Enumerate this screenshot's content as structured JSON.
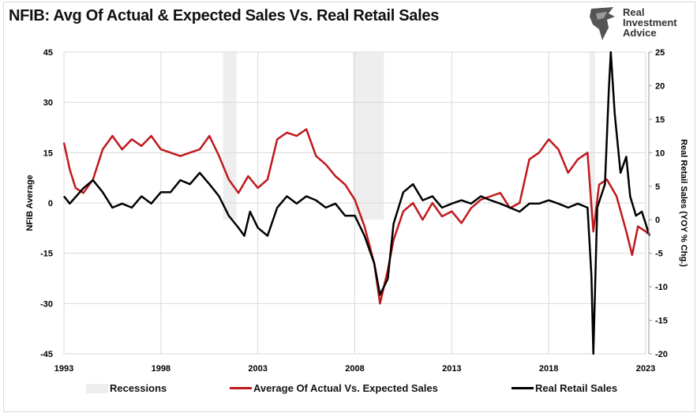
{
  "title": "NFIB: Avg Of Actual & Expected Sales Vs. Real Retail Sales",
  "logo": {
    "line1": "Real",
    "line2": "Investment",
    "line3": "Advice"
  },
  "colors": {
    "red": "#c0181c",
    "black": "#000000",
    "recession": "#eeeeee",
    "grid": "#d9d9d9"
  },
  "chart_data": {
    "type": "line",
    "title": "NFIB: Avg Of Actual & Expected Sales Vs. Real Retail Sales",
    "ylabel": "NFIB Average",
    "y2label": "Real Retail Sales (YOY % Chg.)",
    "xlim": [
      1993,
      2023.3
    ],
    "ylim": [
      -45,
      45
    ],
    "y2lim": [
      -20,
      25
    ],
    "xticks": [
      "1993",
      "1998",
      "2003",
      "2008",
      "2013",
      "2018",
      "2023"
    ],
    "yticks": [
      "45",
      "30",
      "15",
      "0",
      "-15",
      "-30",
      "-45"
    ],
    "y2ticks": [
      "25",
      "20",
      "15",
      "10",
      "5",
      "0",
      "-5",
      "-10",
      "-15",
      "-20"
    ],
    "grid": true,
    "legend_position": "bottom",
    "recessions": {
      "name": "Recessions",
      "periods": [
        [
          2001.2,
          2001.9
        ],
        [
          2007.9,
          2009.5
        ],
        [
          2020.1,
          2020.4
        ]
      ]
    },
    "series": [
      {
        "name": "Average Of Actual Vs. Expected Sales",
        "axis": "left",
        "x": [
          1993,
          1993.3,
          1993.6,
          1994,
          1994.5,
          1995,
          1995.5,
          1996,
          1996.5,
          1997,
          1997.5,
          1998,
          1998.5,
          1999,
          1999.5,
          2000,
          2000.5,
          2001,
          2001.5,
          2002,
          2002.5,
          2003,
          2003.5,
          2004,
          2004.5,
          2005,
          2005.5,
          2006,
          2006.5,
          2007,
          2007.5,
          2008,
          2008.5,
          2009,
          2009.3,
          2009.7,
          2010,
          2010.5,
          2011,
          2011.5,
          2012,
          2012.5,
          2013,
          2013.5,
          2014,
          2014.5,
          2015,
          2015.5,
          2016,
          2016.5,
          2017,
          2017.5,
          2018,
          2018.5,
          2019,
          2019.5,
          2020,
          2020.3,
          2020.6,
          2021,
          2021.5,
          2022,
          2022.3,
          2022.6,
          2023,
          2023.2
        ],
        "y": [
          18,
          10,
          4.5,
          3,
          7,
          16,
          20,
          16,
          19,
          17,
          20,
          16,
          15,
          14,
          15,
          16,
          20,
          14,
          7,
          3,
          8,
          4.5,
          7,
          19,
          21,
          20,
          22,
          14,
          11.5,
          8,
          5.5,
          1,
          -7,
          -18,
          -30,
          -20,
          -11,
          -2.5,
          0,
          -5,
          0,
          -4,
          -2.5,
          -6,
          -1.5,
          1,
          2,
          3,
          -1.5,
          0,
          13,
          15,
          19,
          16,
          9,
          13,
          15,
          -8.5,
          5.5,
          7,
          2,
          -8.5,
          -15.5,
          -7,
          -8.5,
          -9.5
        ]
      },
      {
        "name": "Real Retail Sales",
        "axis": "right",
        "x": [
          1993,
          1993.3,
          1994,
          1994.5,
          1995,
          1995.5,
          1996,
          1996.5,
          1997,
          1997.5,
          1998,
          1998.5,
          1999,
          1999.5,
          2000,
          2000.5,
          2001,
          2001.5,
          2002,
          2002.3,
          2002.6,
          2003,
          2003.5,
          2004,
          2004.5,
          2005,
          2005.5,
          2006,
          2006.5,
          2007,
          2007.5,
          2008,
          2008.5,
          2009,
          2009.3,
          2009.7,
          2010,
          2010.5,
          2011,
          2011.5,
          2012,
          2012.5,
          2013,
          2013.5,
          2014,
          2014.5,
          2015,
          2015.5,
          2016,
          2016.5,
          2017,
          2017.5,
          2018,
          2018.5,
          2019,
          2019.5,
          2020,
          2020.2,
          2020.3,
          2020.5,
          2020.9,
          2021.1,
          2021.2,
          2021.4,
          2021.7,
          2022,
          2022.2,
          2022.5,
          2022.8,
          2023,
          2023.2
        ],
        "y": [
          3.5,
          2.4,
          4.7,
          5.9,
          4.1,
          1.8,
          2.4,
          1.8,
          3.5,
          2.4,
          4.1,
          4.1,
          5.9,
          5.3,
          7,
          5.3,
          3.5,
          0.6,
          -1.2,
          -2.4,
          1.2,
          -1.2,
          -2.4,
          1.8,
          3.5,
          2.4,
          3.5,
          2.9,
          1.8,
          2.4,
          0.6,
          0.6,
          -2.4,
          -6.5,
          -11.2,
          -8.8,
          -0.6,
          4.1,
          5.3,
          2.9,
          3.5,
          1.8,
          2.4,
          2.9,
          2.4,
          3.5,
          2.9,
          2.4,
          1.8,
          1.2,
          2.4,
          2.4,
          2.9,
          2.4,
          1.8,
          2.4,
          1.8,
          -8.2,
          -20,
          1.8,
          5.3,
          19.4,
          25,
          15.9,
          7,
          9.4,
          3.5,
          0.6,
          1.2,
          -0.6,
          -2.4
        ]
      }
    ]
  }
}
